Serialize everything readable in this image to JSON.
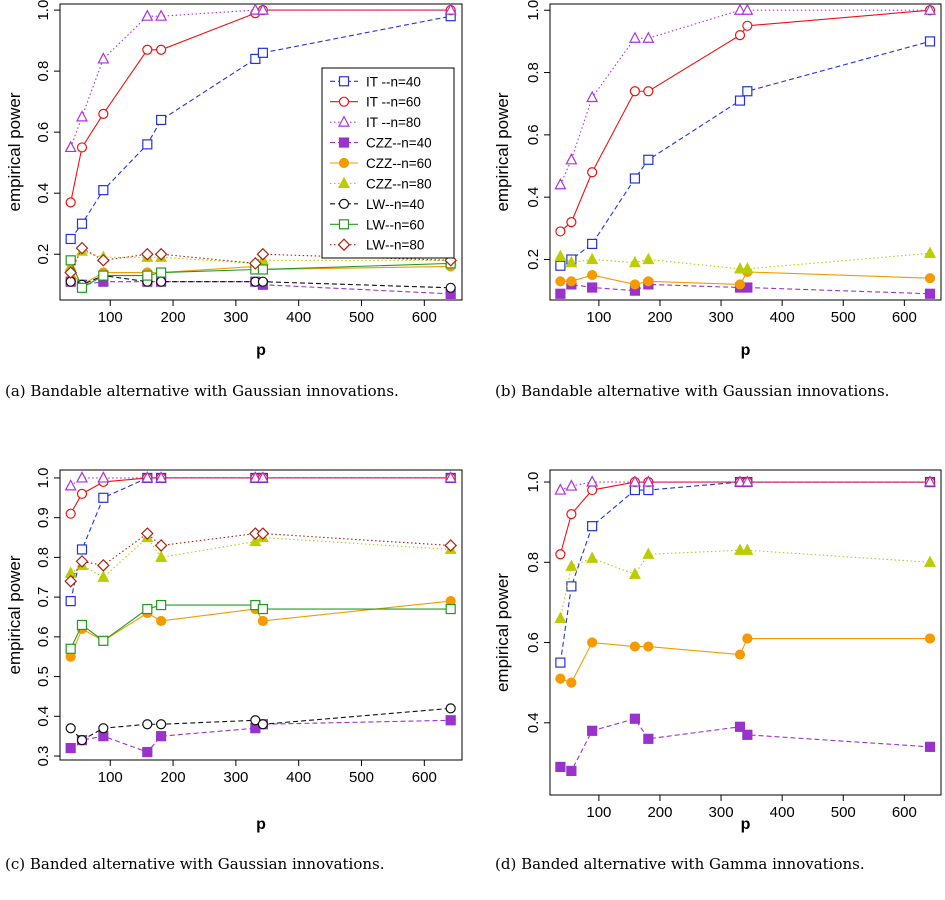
{
  "colors": {
    "IT-n40": "#2233dd",
    "IT-n60": "#ee1111",
    "IT-n80": "#aa33dd",
    "CZZ-n40": "#9933cc",
    "CZZ-n60": "#f59a00",
    "CZZ-n80": "#bbcc00",
    "LW-n40": "#111111",
    "LW-n60": "#229922",
    "LW-n80": "#aa2211"
  },
  "styles": {
    "IT-n40": {
      "marker": "square-open",
      "dash": "dashed"
    },
    "IT-n60": {
      "marker": "circle-open",
      "dash": "solid"
    },
    "IT-n80": {
      "marker": "triangle-open",
      "dash": "dotted"
    },
    "CZZ-n40": {
      "marker": "square-filled",
      "dash": "dashed"
    },
    "CZZ-n60": {
      "marker": "circle-filled",
      "dash": "solid"
    },
    "CZZ-n80": {
      "marker": "triangle-filled",
      "dash": "dotted"
    },
    "LW-n40": {
      "marker": "circle-open",
      "dash": "dashed"
    },
    "LW-n60": {
      "marker": "square-open",
      "dash": "solid"
    },
    "LW-n80": {
      "marker": "diamond-open",
      "dash": "dotted"
    }
  },
  "chart_data": [
    {
      "type": "line",
      "caption": "(a) Bandable alternative with Gaussian innovations.",
      "xlabel": "p",
      "ylabel": "empirical power",
      "xlim": [
        20,
        660
      ],
      "ylim": [
        0.05,
        1.02
      ],
      "xticks": [
        100,
        200,
        300,
        400,
        500,
        600
      ],
      "yticks": [
        0.2,
        0.4,
        0.6,
        0.8,
        1.0
      ],
      "ytick_labels": [
        "0.2",
        "0.4",
        "0.6",
        "0.8",
        "1.0"
      ],
      "legend": "inside top-right",
      "x": [
        37,
        55,
        89,
        159,
        181,
        331,
        343,
        642
      ],
      "series": [
        {
          "name": "IT --n=40",
          "key": "IT-n40",
          "values": [
            0.25,
            0.3,
            0.41,
            0.56,
            0.64,
            0.84,
            0.86,
            0.98
          ]
        },
        {
          "name": "IT --n=60",
          "key": "IT-n60",
          "values": [
            0.37,
            0.55,
            0.66,
            0.87,
            0.87,
            0.99,
            1.0,
            1.0
          ]
        },
        {
          "name": "IT --n=80",
          "key": "IT-n80",
          "values": [
            0.55,
            0.65,
            0.84,
            0.98,
            0.98,
            1.0,
            1.0,
            1.0
          ]
        },
        {
          "name": "CZZ--n=40",
          "key": "CZZ-n40",
          "values": [
            0.11,
            0.1,
            0.11,
            0.11,
            0.11,
            0.11,
            0.1,
            0.07
          ]
        },
        {
          "name": "CZZ--n=60",
          "key": "CZZ-n60",
          "values": [
            0.14,
            0.1,
            0.14,
            0.14,
            0.14,
            0.16,
            0.15,
            0.16
          ]
        },
        {
          "name": "CZZ--n=80",
          "key": "CZZ-n80",
          "values": [
            0.16,
            0.21,
            0.19,
            0.19,
            0.19,
            0.17,
            0.18,
            0.18
          ]
        },
        {
          "name": "LW--n=40",
          "key": "LW-n40",
          "values": [
            0.11,
            0.1,
            0.13,
            0.11,
            0.11,
            0.11,
            0.11,
            0.09
          ]
        },
        {
          "name": "LW--n=60",
          "key": "LW-n60",
          "values": [
            0.18,
            0.09,
            0.13,
            0.13,
            0.14,
            0.15,
            0.15,
            0.17
          ]
        },
        {
          "name": "LW--n=80",
          "key": "LW-n80",
          "values": [
            0.14,
            0.22,
            0.18,
            0.2,
            0.2,
            0.17,
            0.2,
            0.18
          ]
        }
      ]
    },
    {
      "type": "line",
      "caption": "(b) Bandable alternative with Gaussian innovations.",
      "xlabel": "p",
      "ylabel": "empirical power",
      "xlim": [
        20,
        660
      ],
      "ylim": [
        0.07,
        1.02
      ],
      "xticks": [
        100,
        200,
        300,
        400,
        500,
        600
      ],
      "yticks": [
        0.2,
        0.4,
        0.6,
        0.8,
        1.0
      ],
      "ytick_labels": [
        "0.2",
        "0.4",
        "0.6",
        "0.8",
        "1.0"
      ],
      "x": [
        37,
        55,
        89,
        159,
        181,
        331,
        343,
        642
      ],
      "series": [
        {
          "key": "IT-n40",
          "values": [
            0.18,
            0.2,
            0.25,
            0.46,
            0.52,
            0.71,
            0.74,
            0.9
          ]
        },
        {
          "key": "IT-n60",
          "values": [
            0.29,
            0.32,
            0.48,
            0.74,
            0.74,
            0.92,
            0.95,
            1.0
          ]
        },
        {
          "key": "IT-n80",
          "values": [
            0.44,
            0.52,
            0.72,
            0.91,
            0.91,
            1.0,
            1.0,
            1.0
          ]
        },
        {
          "key": "CZZ-n40",
          "values": [
            0.09,
            0.12,
            0.11,
            0.1,
            0.12,
            0.11,
            0.11,
            0.09
          ]
        },
        {
          "key": "CZZ-n60",
          "values": [
            0.13,
            0.13,
            0.15,
            0.12,
            0.13,
            0.12,
            0.16,
            0.14
          ]
        },
        {
          "key": "CZZ-n80",
          "values": [
            0.21,
            0.19,
            0.2,
            0.19,
            0.2,
            0.17,
            0.17,
            0.22
          ]
        }
      ]
    },
    {
      "type": "line",
      "caption": "(c) Banded alternative with Gaussian innovations.",
      "xlabel": "p",
      "ylabel": "empirical power",
      "xlim": [
        20,
        660
      ],
      "ylim": [
        0.29,
        1.02
      ],
      "xticks": [
        100,
        200,
        300,
        400,
        500,
        600
      ],
      "yticks": [
        0.3,
        0.4,
        0.5,
        0.6,
        0.7,
        0.8,
        0.9,
        1.0
      ],
      "ytick_labels": [
        "0.3",
        "0.4",
        "0.5",
        "0.6",
        "0.7",
        "0.8",
        "0.9",
        "1.0"
      ],
      "x": [
        37,
        55,
        89,
        159,
        181,
        331,
        343,
        642
      ],
      "series": [
        {
          "key": "IT-n40",
          "values": [
            0.69,
            0.82,
            0.95,
            1.0,
            1.0,
            1.0,
            1.0,
            1.0
          ]
        },
        {
          "key": "IT-n60",
          "values": [
            0.91,
            0.96,
            0.99,
            1.0,
            1.0,
            1.0,
            1.0,
            1.0
          ]
        },
        {
          "key": "IT-n80",
          "values": [
            0.98,
            1.0,
            1.0,
            1.0,
            1.0,
            1.0,
            1.0,
            1.0
          ]
        },
        {
          "key": "CZZ-n40",
          "values": [
            0.32,
            0.34,
            0.35,
            0.31,
            0.35,
            0.37,
            0.38,
            0.39
          ]
        },
        {
          "key": "CZZ-n60",
          "values": [
            0.55,
            0.62,
            0.59,
            0.66,
            0.64,
            0.67,
            0.64,
            0.69
          ]
        },
        {
          "key": "CZZ-n80",
          "values": [
            0.76,
            0.78,
            0.75,
            0.85,
            0.8,
            0.84,
            0.85,
            0.82
          ]
        },
        {
          "key": "LW-n40",
          "values": [
            0.37,
            0.34,
            0.37,
            0.38,
            0.38,
            0.39,
            0.38,
            0.42
          ]
        },
        {
          "key": "LW-n60",
          "values": [
            0.57,
            0.63,
            0.59,
            0.67,
            0.68,
            0.68,
            0.67,
            0.67
          ]
        },
        {
          "key": "LW-n80",
          "values": [
            0.74,
            0.79,
            0.78,
            0.86,
            0.83,
            0.86,
            0.86,
            0.83
          ]
        }
      ]
    },
    {
      "type": "line",
      "caption": "(d) Banded alternative with Gamma innovations.",
      "xlabel": "p",
      "ylabel": "empirical power",
      "xlim": [
        20,
        660
      ],
      "ylim": [
        0.22,
        1.03
      ],
      "xticks": [
        100,
        200,
        300,
        400,
        500,
        600
      ],
      "yticks": [
        0.4,
        0.6,
        0.8,
        1.0
      ],
      "ytick_labels": [
        "0.4",
        "0.6",
        "0.8",
        "1.0"
      ],
      "x": [
        37,
        55,
        89,
        159,
        181,
        331,
        343,
        642
      ],
      "series": [
        {
          "key": "IT-n40",
          "values": [
            0.55,
            0.74,
            0.89,
            0.98,
            0.98,
            1.0,
            1.0,
            1.0
          ]
        },
        {
          "key": "IT-n60",
          "values": [
            0.82,
            0.92,
            0.98,
            1.0,
            1.0,
            1.0,
            1.0,
            1.0
          ]
        },
        {
          "key": "IT-n80",
          "values": [
            0.98,
            0.99,
            1.0,
            1.0,
            1.0,
            1.0,
            1.0,
            1.0
          ]
        },
        {
          "key": "CZZ-n40",
          "values": [
            0.29,
            0.28,
            0.38,
            0.41,
            0.36,
            0.39,
            0.37,
            0.34
          ]
        },
        {
          "key": "CZZ-n60",
          "values": [
            0.51,
            0.5,
            0.6,
            0.59,
            0.59,
            0.57,
            0.61,
            0.61
          ]
        },
        {
          "key": "CZZ-n80",
          "values": [
            0.66,
            0.79,
            0.81,
            0.77,
            0.82,
            0.83,
            0.83,
            0.8
          ]
        }
      ]
    }
  ]
}
